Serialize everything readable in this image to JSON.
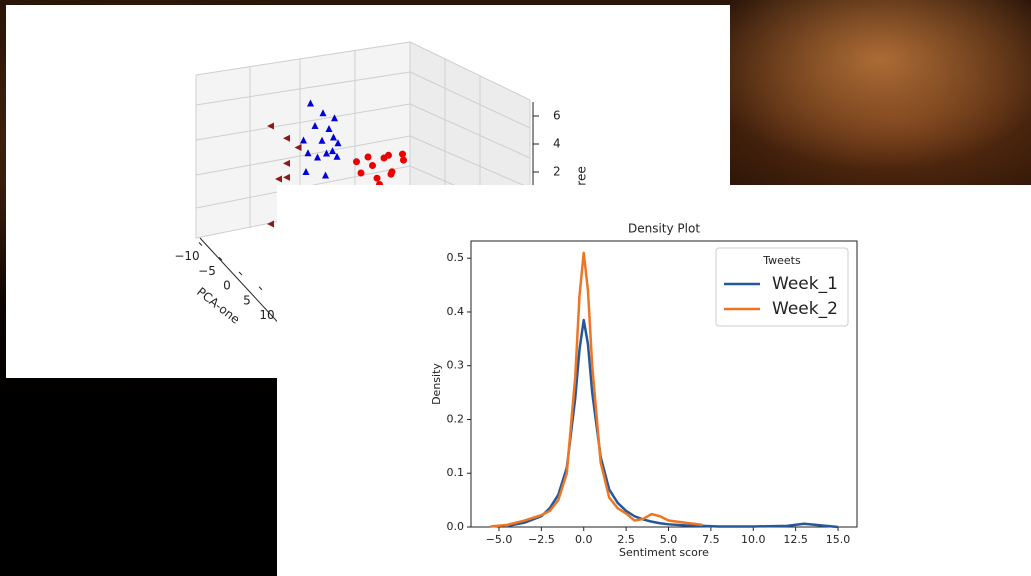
{
  "chart_data": [
    {
      "type": "scatter3d",
      "xlabel": "PCA-one",
      "zlabel": "ree",
      "xticks": [
        {
          "value": -10,
          "label": "−10"
        },
        {
          "value": -5,
          "label": "−5"
        },
        0,
        5,
        10
      ],
      "zticks": [
        2,
        4,
        6
      ],
      "series": [
        {
          "color": "#0000dd",
          "marker": "triangle-up",
          "x": [
            0,
            -2,
            1,
            -1,
            2,
            -3,
            0,
            1,
            -1,
            2,
            -2,
            0,
            3,
            -4,
            1,
            -1
          ],
          "y": [
            -1,
            -1,
            -2,
            0,
            -1,
            -2,
            -3,
            0,
            -2,
            0,
            0,
            1,
            -1,
            -1,
            -1,
            1
          ],
          "z": [
            4.8,
            5.5,
            4,
            3.5,
            6,
            4.5,
            3,
            5,
            7.5,
            3.8,
            6.2,
            4.2,
            4.6,
            3.2,
            2.5,
            5.8
          ]
        },
        {
          "color": "#ee0000",
          "marker": "circle",
          "x": [
            3,
            4,
            2,
            5,
            3,
            4,
            6,
            2,
            5,
            3,
            4,
            7
          ],
          "y": [
            4,
            5,
            3,
            4,
            6,
            3,
            5,
            5,
            7,
            2,
            6,
            6
          ],
          "z": [
            2.5,
            3,
            2,
            1.5,
            2.8,
            3.5,
            2.2,
            1.2,
            2.6,
            3.2,
            1.8,
            3.6
          ]
        },
        {
          "color": "#8b1a1a",
          "marker": "triangle-left",
          "x": [
            -10,
            -10,
            -10,
            -10,
            -10,
            -10,
            -10,
            -9
          ],
          "y": [
            -3,
            -1,
            -1,
            -1,
            0,
            -3,
            -2,
            0
          ],
          "z": [
            4.5,
            3.2,
            1.4,
            0.4,
            -1,
            -2.5,
            0.5,
            2.5
          ]
        }
      ]
    },
    {
      "type": "line",
      "title": "Density Plot",
      "xlabel": "Sentiment score",
      "ylabel": "Density",
      "x": [
        -5.5,
        -4.5,
        -3.5,
        -2.5,
        -2,
        -1.5,
        -1,
        -0.5,
        -0.25,
        0,
        0.25,
        0.5,
        1,
        1.5,
        2,
        2.5,
        3,
        3.5,
        4,
        4.5,
        5,
        6,
        7,
        8,
        10,
        12,
        13,
        14,
        15
      ],
      "series": [
        {
          "name": "Week_1",
          "color": "#24589a",
          "values": [
            null,
            0.002,
            0.008,
            0.02,
            0.035,
            0.06,
            0.11,
            0.24,
            0.33,
            0.385,
            0.34,
            0.25,
            0.13,
            0.07,
            0.045,
            0.03,
            0.02,
            0.014,
            0.01,
            0.007,
            0.005,
            0.003,
            0.002,
            0.001,
            0.001,
            0.002,
            0.006,
            0.003,
            0
          ]
        },
        {
          "name": "Week_2",
          "color": "#ee7623",
          "values": [
            0.001,
            0.004,
            0.012,
            0.022,
            0.03,
            0.05,
            0.1,
            0.28,
            0.43,
            0.51,
            0.44,
            0.3,
            0.12,
            0.055,
            0.035,
            0.025,
            0.012,
            0.015,
            0.024,
            0.02,
            0.012,
            0.008,
            0.004,
            null,
            null,
            null,
            null,
            null,
            null
          ]
        }
      ],
      "xlim": [
        -6.65,
        16.12
      ],
      "ylim": [
        0,
        0.532
      ],
      "xticks": [
        {
          "value": -5,
          "label": "−5.0"
        },
        {
          "value": -2.5,
          "label": "−2.5"
        },
        {
          "value": 0,
          "label": "0.0"
        },
        2.5,
        {
          "value": 5,
          "label": "5.0"
        },
        7.5,
        {
          "value": 10,
          "label": "10.0"
        },
        12.5,
        {
          "value": 15,
          "label": "15.0"
        }
      ],
      "yticks": [
        {
          "value": 0,
          "label": "0.0"
        },
        0.1,
        0.2,
        0.3,
        0.4,
        0.5
      ],
      "legend": {
        "title": "Tweets",
        "loc": "upper right"
      }
    }
  ]
}
